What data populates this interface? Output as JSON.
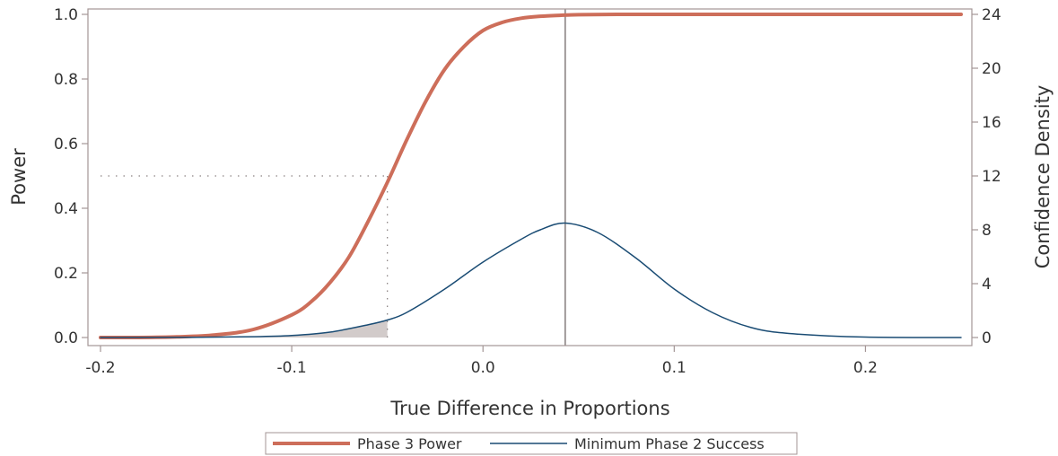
{
  "colors": {
    "power": "#cd6e5a",
    "density": "#1a4c74",
    "frame": "#a39595",
    "reference_line": "#8c8484",
    "shade": "#d2cbca",
    "text": "#333333"
  },
  "chart_data": {
    "type": "line",
    "xlabel": "True Difference in Proportions",
    "ylabel": "Power",
    "y2label": "Confidence Density",
    "xlim": [
      -0.2,
      0.25
    ],
    "ylim": [
      0,
      1
    ],
    "y2lim": [
      0,
      24
    ],
    "x_ticks": [
      "-0.2",
      "-0.1",
      "0.0",
      "0.1",
      "0.2"
    ],
    "y_ticks": [
      "0.0",
      "0.2",
      "0.4",
      "0.6",
      "0.8",
      "1.0"
    ],
    "y2_ticks": [
      "0",
      "4",
      "8",
      "12",
      "16",
      "20",
      "24"
    ],
    "grid": false,
    "legend_position": "bottom",
    "series": [
      {
        "name": "Phase 3 Power",
        "axis": "left",
        "x": [
          -0.2,
          -0.18,
          -0.16,
          -0.14,
          -0.12,
          -0.1,
          -0.09,
          -0.08,
          -0.07,
          -0.06,
          -0.05,
          -0.04,
          -0.03,
          -0.02,
          -0.01,
          0.0,
          0.01,
          0.02,
          0.03,
          0.04,
          0.05,
          0.07,
          0.1,
          0.15,
          0.2,
          0.25
        ],
        "y": [
          0.0,
          0.0,
          0.002,
          0.008,
          0.025,
          0.07,
          0.11,
          0.17,
          0.25,
          0.36,
          0.48,
          0.61,
          0.73,
          0.83,
          0.9,
          0.95,
          0.975,
          0.988,
          0.994,
          0.997,
          0.999,
          1.0,
          1.0,
          1.0,
          1.0,
          1.0
        ]
      },
      {
        "name": "Minimum Phase 2 Success",
        "axis": "right",
        "x": [
          -0.2,
          -0.15,
          -0.12,
          -0.1,
          -0.08,
          -0.06,
          -0.05,
          -0.04,
          -0.02,
          0.0,
          0.02,
          0.03,
          0.043,
          0.06,
          0.08,
          0.1,
          0.12,
          0.14,
          0.16,
          0.2,
          0.25
        ],
        "y": [
          0.0,
          0.02,
          0.06,
          0.15,
          0.4,
          0.95,
          1.3,
          1.85,
          3.6,
          5.6,
          7.3,
          8.0,
          8.5,
          7.8,
          5.9,
          3.6,
          1.85,
          0.75,
          0.3,
          0.03,
          0.0
        ]
      }
    ],
    "annotations": {
      "shaded_region_x": [
        -0.2,
        -0.05
      ],
      "target_power": 0.5,
      "target_x": -0.05,
      "vertical_line_x": 0.043
    }
  }
}
